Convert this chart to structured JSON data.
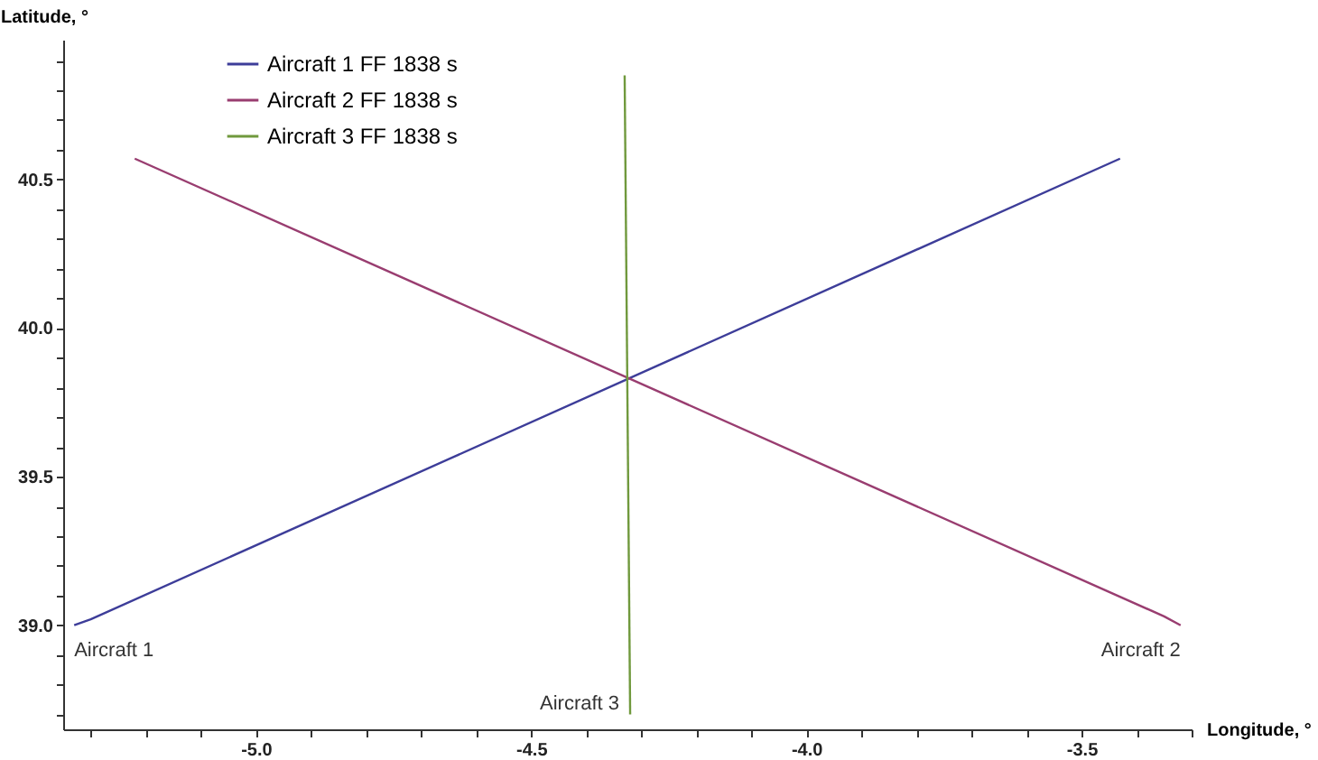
{
  "chart_data": {
    "type": "line",
    "xlabel": "Longitude, °",
    "ylabel": "Latitude, °",
    "xlim": [
      -5.35,
      -3.3
    ],
    "ylim": [
      38.65,
      40.97
    ],
    "xticks": [
      {
        "value": -5.3,
        "label": null
      },
      {
        "value": -5.2,
        "label": null
      },
      {
        "value": -5.1,
        "label": null
      },
      {
        "value": -5.0,
        "label": "-5.0"
      },
      {
        "value": -4.9,
        "label": null
      },
      {
        "value": -4.8,
        "label": null
      },
      {
        "value": -4.7,
        "label": null
      },
      {
        "value": -4.6,
        "label": null
      },
      {
        "value": -4.5,
        "label": "-4.5"
      },
      {
        "value": -4.4,
        "label": null
      },
      {
        "value": -4.3,
        "label": null
      },
      {
        "value": -4.2,
        "label": null
      },
      {
        "value": -4.1,
        "label": null
      },
      {
        "value": -4.0,
        "label": "-4.0"
      },
      {
        "value": -3.9,
        "label": null
      },
      {
        "value": -3.8,
        "label": null
      },
      {
        "value": -3.7,
        "label": null
      },
      {
        "value": -3.6,
        "label": null
      },
      {
        "value": -3.5,
        "label": "-3.5"
      },
      {
        "value": -3.4,
        "label": null
      },
      {
        "value": -3.3,
        "label": null
      }
    ],
    "yticks": [
      {
        "value": 38.7,
        "label": null
      },
      {
        "value": 38.8,
        "label": null
      },
      {
        "value": 38.9,
        "label": null
      },
      {
        "value": 39.0,
        "label": "39.0"
      },
      {
        "value": 39.1,
        "label": null
      },
      {
        "value": 39.2,
        "label": null
      },
      {
        "value": 39.3,
        "label": null
      },
      {
        "value": 39.4,
        "label": null
      },
      {
        "value": 39.5,
        "label": "39.5"
      },
      {
        "value": 39.6,
        "label": null
      },
      {
        "value": 39.7,
        "label": null
      },
      {
        "value": 39.8,
        "label": null
      },
      {
        "value": 39.9,
        "label": null
      },
      {
        "value": 40.0,
        "label": "40.0"
      },
      {
        "value": 40.1,
        "label": null
      },
      {
        "value": 40.2,
        "label": null
      },
      {
        "value": 40.3,
        "label": null
      },
      {
        "value": 40.4,
        "label": null
      },
      {
        "value": 40.5,
        "label": "40.5"
      },
      {
        "value": 40.6,
        "label": null
      },
      {
        "value": 40.7,
        "label": null
      },
      {
        "value": 40.8,
        "label": null
      },
      {
        "value": 40.9,
        "label": null
      }
    ],
    "legend": "top left",
    "grid": false,
    "series": [
      {
        "name": "Aircraft 1 FF 1838 s",
        "color": "#3d3d99",
        "x": [
          -5.33,
          -5.3,
          -3.43
        ],
        "values": [
          39.0,
          39.02,
          40.57
        ]
      },
      {
        "name": "Aircraft 2 FF 1838 s",
        "color": "#993d70",
        "x": [
          -5.22,
          -3.35,
          -3.32
        ],
        "values": [
          40.57,
          39.03,
          39.0
        ]
      },
      {
        "name": "Aircraft 3 FF 1838 s",
        "color": "#70993d",
        "x": [
          -4.32,
          -4.33
        ],
        "values": [
          38.7,
          40.85
        ]
      }
    ],
    "annotations": [
      {
        "text": "Aircraft 1",
        "x": -5.33,
        "y": 39.0
      },
      {
        "text": "Aircraft 2",
        "x": -3.32,
        "y": 39.0
      },
      {
        "text": "Aircraft 3",
        "x": -4.32,
        "y": 38.7
      }
    ]
  }
}
